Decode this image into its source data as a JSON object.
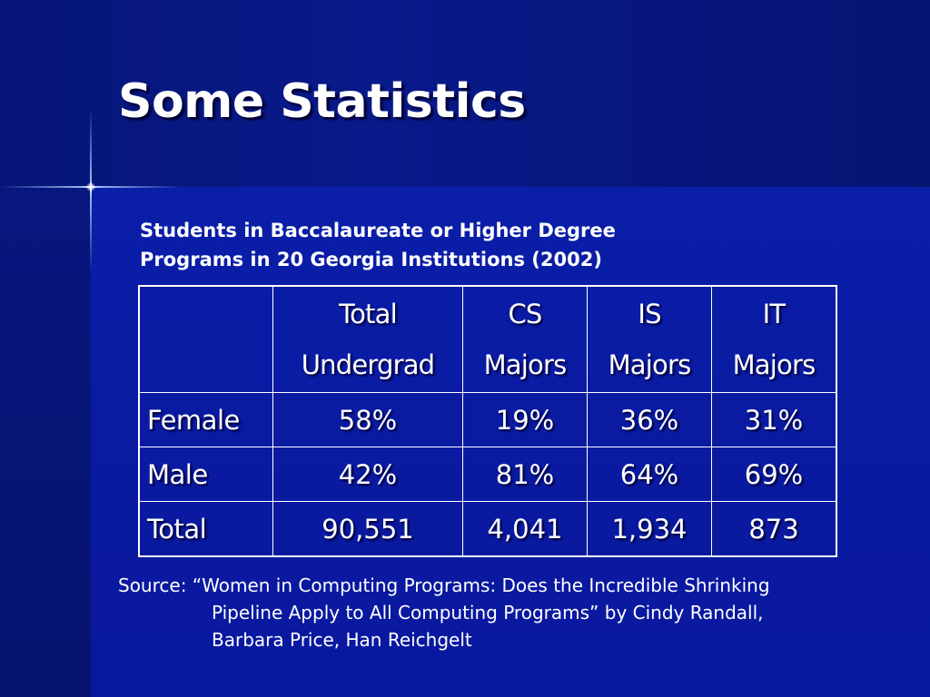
{
  "slide": {
    "title": "Some Statistics",
    "caption_line1": "Students in Baccalaureate or Higher Degree",
    "caption_line2": "Programs in 20 Georgia Institutions (2002)"
  },
  "table": {
    "headers": [
      {
        "line1": "",
        "line2": ""
      },
      {
        "line1": "Total",
        "line2": "Undergrad"
      },
      {
        "line1": "CS",
        "line2": "Majors"
      },
      {
        "line1": "IS",
        "line2": "Majors"
      },
      {
        "line1": "IT",
        "line2": "Majors"
      }
    ],
    "rows": [
      {
        "label": "Female",
        "values": [
          "58%",
          "19%",
          "36%",
          "31%"
        ]
      },
      {
        "label": "Male",
        "values": [
          "42%",
          "81%",
          "64%",
          "69%"
        ]
      },
      {
        "label": "Total",
        "values": [
          "90,551",
          "4,041",
          "1,934",
          "873"
        ]
      }
    ]
  },
  "source": {
    "line1": "Source: “Women in Computing Programs: Does the Incredible Shrinking",
    "line2": "Pipeline Apply to All Computing Programs” by Cindy Randall,",
    "line3": "Barbara Price, Han Reichgelt"
  },
  "colors": {
    "background": "#0a1a9c",
    "header_band": "#061677",
    "text": "#ffffff"
  }
}
